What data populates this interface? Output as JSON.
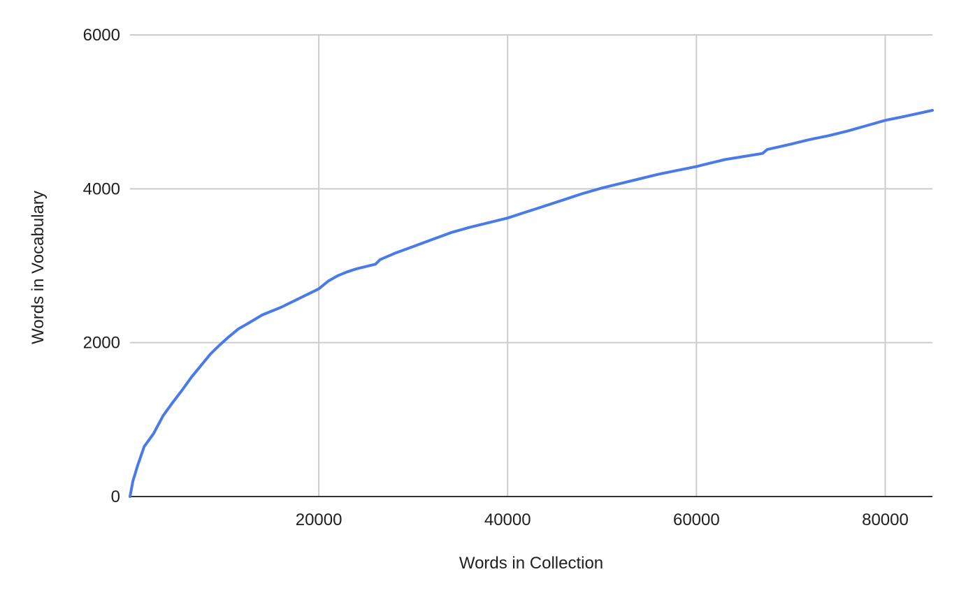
{
  "chart_data": {
    "type": "line",
    "title": "",
    "xlabel": "Words in Collection",
    "ylabel": "Words in Vocabulary",
    "xlim": [
      0,
      85000
    ],
    "ylim": [
      0,
      6000
    ],
    "x_ticks": [
      20000,
      40000,
      60000,
      80000
    ],
    "y_ticks": [
      0,
      2000,
      4000,
      6000
    ],
    "grid": true,
    "legend": "none",
    "line_color": "#4a7ae8",
    "grid_color": "#cccccc",
    "series": [
      {
        "x": [
          0,
          300,
          800,
          1500,
          2500,
          3500,
          4500,
          5500,
          6500,
          7500,
          8500,
          9500,
          10500,
          11500,
          12500,
          14000,
          16000,
          18000,
          20000,
          21000,
          22000,
          23000,
          24000,
          25000,
          26000,
          26500,
          28000,
          30000,
          32000,
          34000,
          36000,
          38000,
          40000,
          42000,
          44000,
          46000,
          48000,
          50000,
          52000,
          54000,
          56000,
          58000,
          60000,
          62000,
          63000,
          65000,
          67000,
          67500,
          70000,
          72000,
          74000,
          76000,
          78000,
          80000,
          82000,
          85000
        ],
        "y": [
          0,
          200,
          400,
          650,
          820,
          1050,
          1220,
          1380,
          1550,
          1700,
          1850,
          1970,
          2080,
          2180,
          2250,
          2360,
          2460,
          2580,
          2700,
          2800,
          2870,
          2920,
          2960,
          2990,
          3020,
          3080,
          3160,
          3250,
          3340,
          3430,
          3500,
          3560,
          3620,
          3700,
          3780,
          3860,
          3940,
          4010,
          4070,
          4130,
          4190,
          4240,
          4290,
          4350,
          4380,
          4420,
          4460,
          4510,
          4580,
          4640,
          4690,
          4750,
          4820,
          4890,
          4940,
          5020
        ]
      }
    ]
  }
}
